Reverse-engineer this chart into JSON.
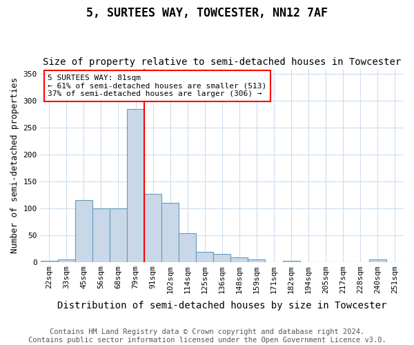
{
  "title": "5, SURTEES WAY, TOWCESTER, NN12 7AF",
  "subtitle": "Size of property relative to semi-detached houses in Towcester",
  "xlabel": "Distribution of semi-detached houses by size in Towcester",
  "ylabel": "Number of semi-detached properties",
  "footer_line1": "Contains HM Land Registry data © Crown copyright and database right 2024.",
  "footer_line2": "Contains public sector information licensed under the Open Government Licence v3.0.",
  "categories": [
    "22sqm",
    "33sqm",
    "45sqm",
    "56sqm",
    "68sqm",
    "79sqm",
    "91sqm",
    "102sqm",
    "114sqm",
    "125sqm",
    "136sqm",
    "148sqm",
    "159sqm",
    "171sqm",
    "182sqm",
    "194sqm",
    "205sqm",
    "217sqm",
    "228sqm",
    "240sqm",
    "251sqm"
  ],
  "values": [
    2,
    4,
    115,
    100,
    100,
    285,
    127,
    110,
    54,
    19,
    15,
    8,
    4,
    0,
    2,
    0,
    0,
    0,
    0,
    4,
    0
  ],
  "bar_color": "#c8d8e8",
  "bar_edge_color": "#6699bb",
  "annotation_text": "5 SURTEES WAY: 81sqm\n← 61% of semi-detached houses are smaller (513)\n37% of semi-detached houses are larger (306) →",
  "annotation_box_color": "white",
  "annotation_box_edge_color": "red",
  "vline_color": "red",
  "vline_x_index": 5.5,
  "ylim": [
    0,
    360
  ],
  "yticks": [
    0,
    50,
    100,
    150,
    200,
    250,
    300,
    350
  ],
  "title_fontsize": 12,
  "subtitle_fontsize": 10,
  "xlabel_fontsize": 10,
  "ylabel_fontsize": 9,
  "tick_fontsize": 8,
  "footer_fontsize": 7.5,
  "background_color": "#ffffff",
  "plot_background_color": "#ffffff",
  "grid_color": "#ccddee"
}
